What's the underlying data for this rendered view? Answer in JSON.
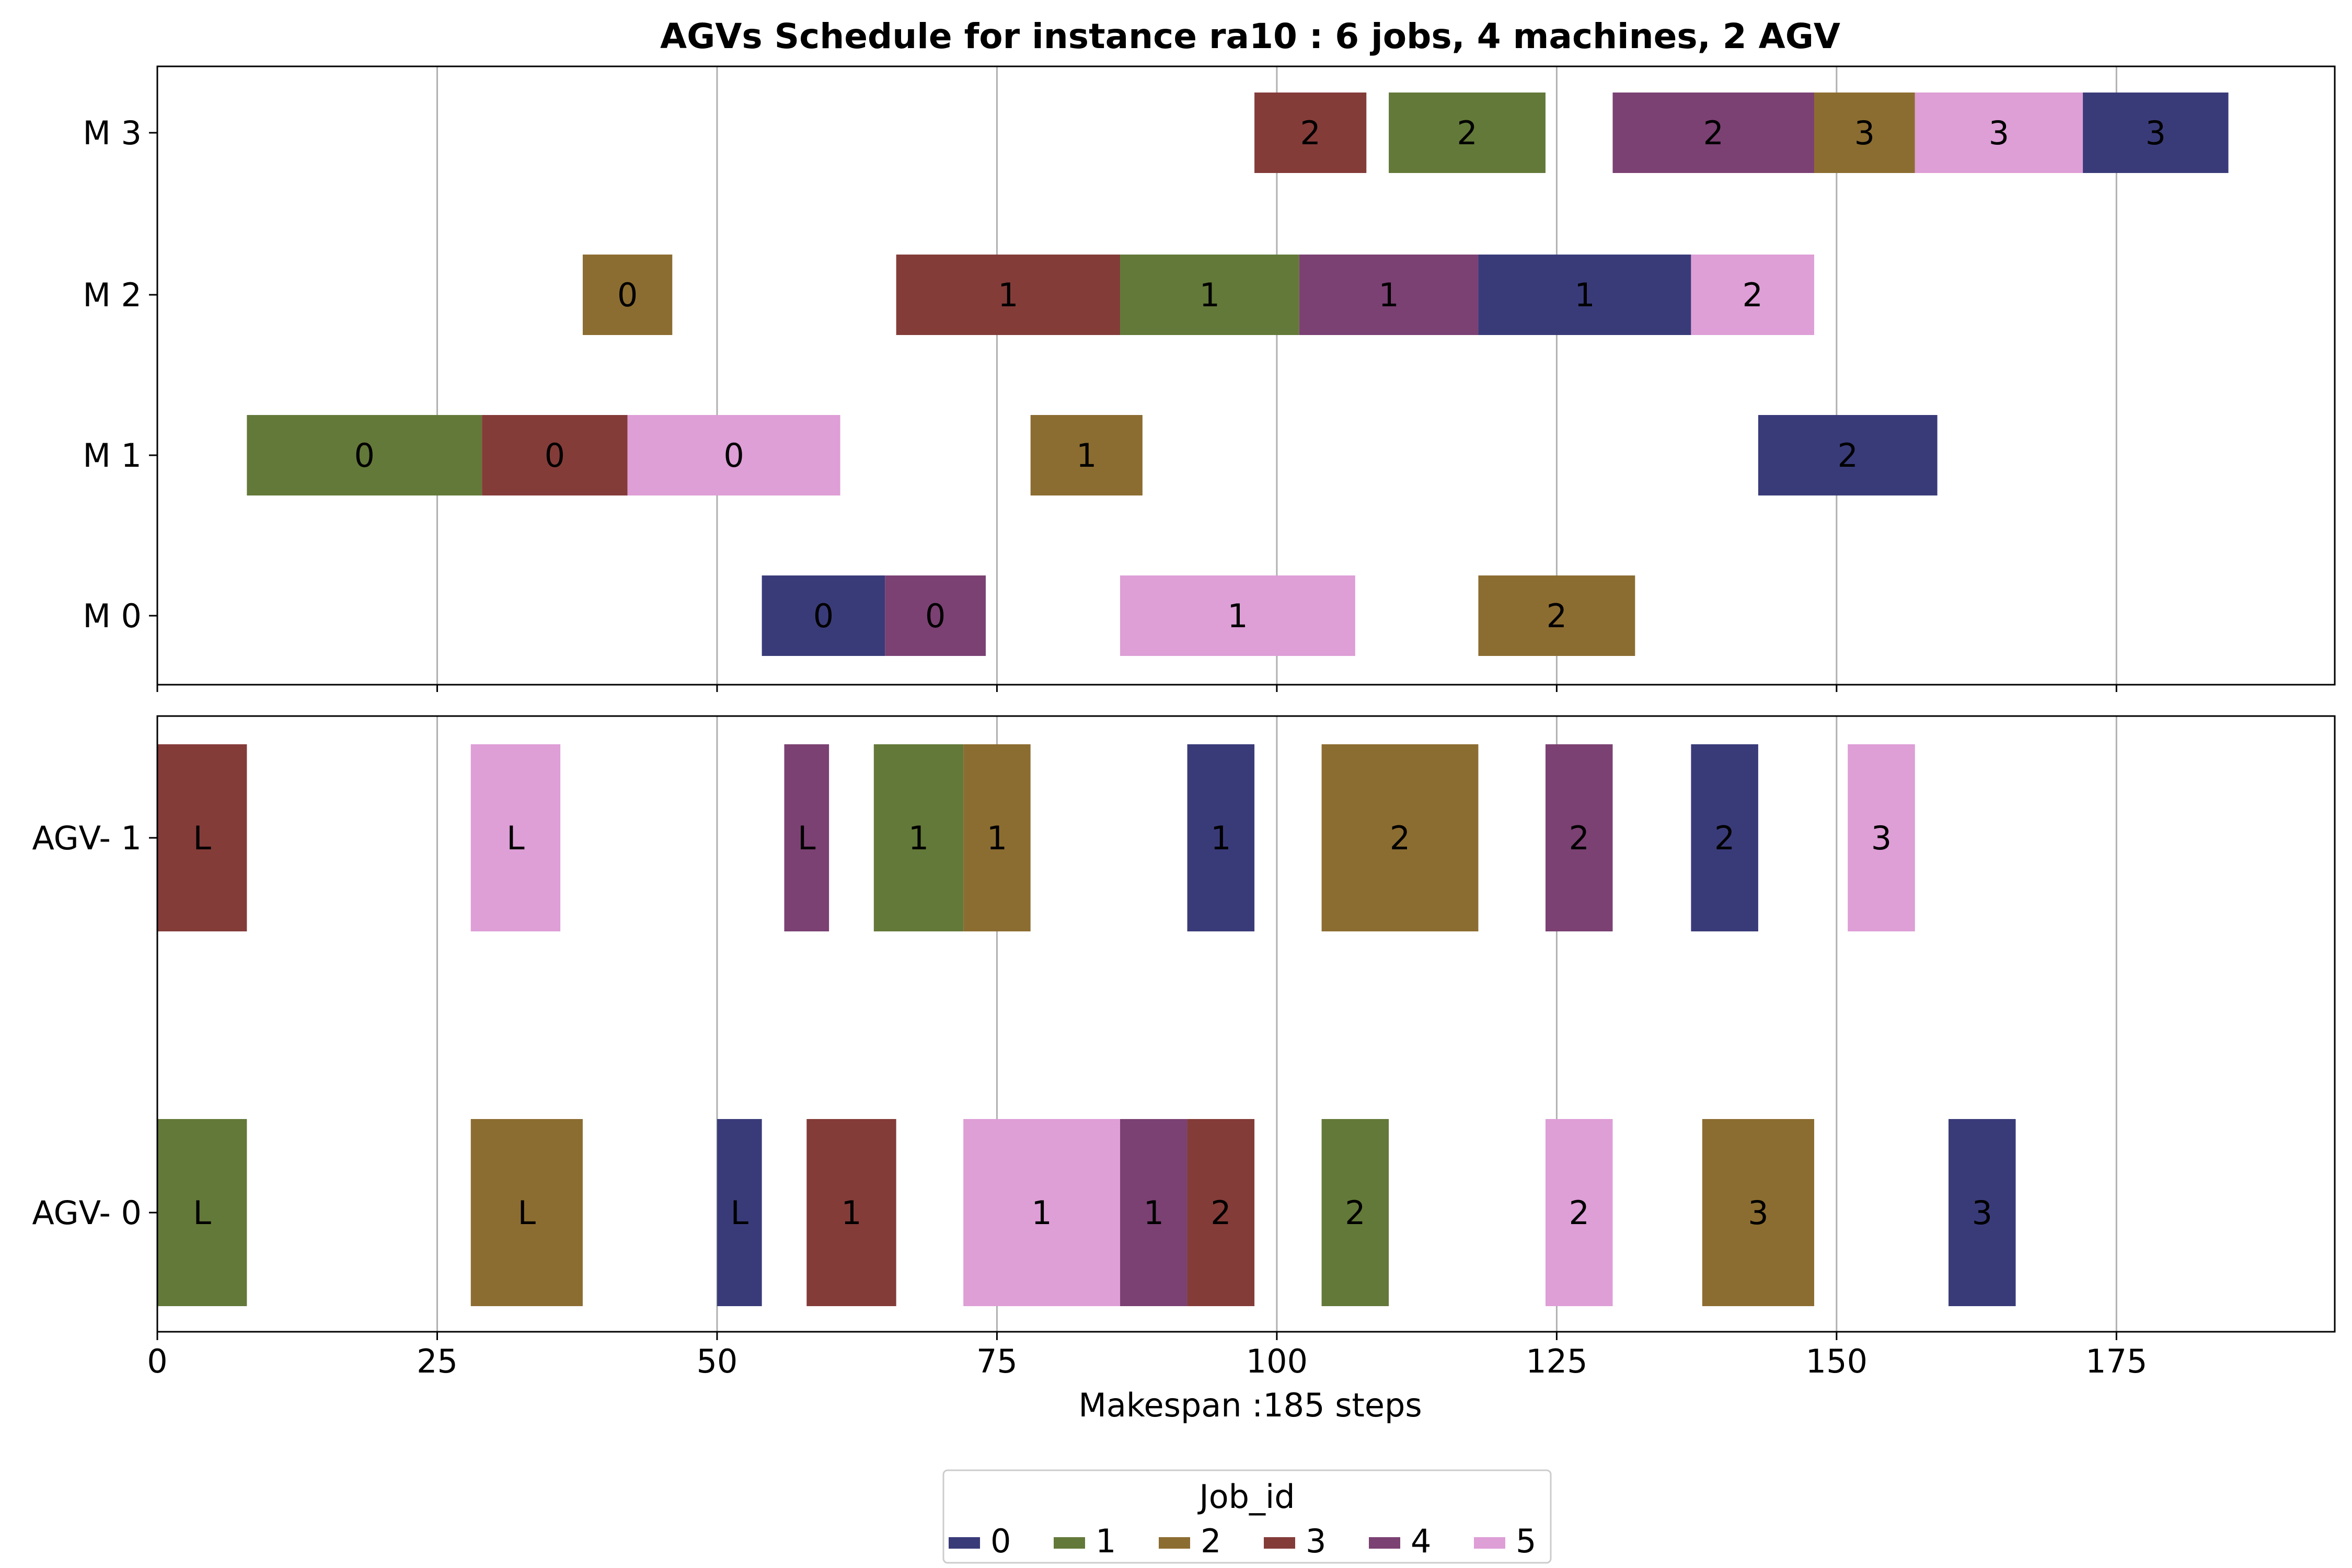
{
  "chart_data": {
    "type": "gantt",
    "title": "AGVs Schedule for instance ra10  : 6 jobs, 4 machines, 2 AGV",
    "xlabel": "Makespan :185 steps",
    "xlim": [
      0,
      194.5
    ],
    "x_ticks": [
      0,
      25,
      50,
      75,
      100,
      125,
      150,
      175
    ],
    "grid": "vertical",
    "legend": {
      "title": "Job_id",
      "placement": "bottom-center",
      "entries": [
        "0",
        "1",
        "2",
        "3",
        "4",
        "5"
      ]
    },
    "job_colors": {
      "0": "#393b79",
      "1": "#637939",
      "2": "#8c6d31",
      "3": "#843c39",
      "4": "#7b4173",
      "5": "#de9ed6"
    },
    "panels": [
      {
        "name": "machines",
        "rows": [
          "M 0",
          "M 1",
          "M 2",
          "M 3"
        ],
        "tasks": [
          {
            "row": "M 3",
            "job": 3,
            "start": 98,
            "end": 108,
            "label": "2"
          },
          {
            "row": "M 3",
            "job": 1,
            "start": 110,
            "end": 124,
            "label": "2"
          },
          {
            "row": "M 3",
            "job": 4,
            "start": 130,
            "end": 148,
            "label": "2"
          },
          {
            "row": "M 3",
            "job": 2,
            "start": 148,
            "end": 157,
            "label": "3"
          },
          {
            "row": "M 3",
            "job": 5,
            "start": 157,
            "end": 172,
            "label": "3"
          },
          {
            "row": "M 3",
            "job": 0,
            "start": 172,
            "end": 185,
            "label": "3"
          },
          {
            "row": "M 2",
            "job": 2,
            "start": 38,
            "end": 46,
            "label": "0"
          },
          {
            "row": "M 2",
            "job": 3,
            "start": 66,
            "end": 86,
            "label": "1"
          },
          {
            "row": "M 2",
            "job": 1,
            "start": 86,
            "end": 102,
            "label": "1"
          },
          {
            "row": "M 2",
            "job": 4,
            "start": 102,
            "end": 118,
            "label": "1"
          },
          {
            "row": "M 2",
            "job": 0,
            "start": 118,
            "end": 137,
            "label": "1"
          },
          {
            "row": "M 2",
            "job": 5,
            "start": 137,
            "end": 148,
            "label": "2"
          },
          {
            "row": "M 1",
            "job": 1,
            "start": 8,
            "end": 29,
            "label": "0"
          },
          {
            "row": "M 1",
            "job": 3,
            "start": 29,
            "end": 42,
            "label": "0"
          },
          {
            "row": "M 1",
            "job": 5,
            "start": 42,
            "end": 61,
            "label": "0"
          },
          {
            "row": "M 1",
            "job": 2,
            "start": 78,
            "end": 88,
            "label": "1"
          },
          {
            "row": "M 1",
            "job": 0,
            "start": 143,
            "end": 159,
            "label": "2"
          },
          {
            "row": "M 0",
            "job": 0,
            "start": 54,
            "end": 65,
            "label": "0"
          },
          {
            "row": "M 0",
            "job": 4,
            "start": 65,
            "end": 74,
            "label": "0"
          },
          {
            "row": "M 0",
            "job": 5,
            "start": 86,
            "end": 107,
            "label": "1"
          },
          {
            "row": "M 0",
            "job": 2,
            "start": 118,
            "end": 132,
            "label": "2"
          }
        ]
      },
      {
        "name": "agvs",
        "rows": [
          "AGV- 0",
          "AGV- 1"
        ],
        "tasks": [
          {
            "row": "AGV- 1",
            "job": 3,
            "start": 0,
            "end": 8,
            "label": "L"
          },
          {
            "row": "AGV- 1",
            "job": 5,
            "start": 28,
            "end": 36,
            "label": "L"
          },
          {
            "row": "AGV- 1",
            "job": 4,
            "start": 56,
            "end": 60,
            "label": "L"
          },
          {
            "row": "AGV- 1",
            "job": 1,
            "start": 64,
            "end": 72,
            "label": "1"
          },
          {
            "row": "AGV- 1",
            "job": 2,
            "start": 72,
            "end": 78,
            "label": "1"
          },
          {
            "row": "AGV- 1",
            "job": 0,
            "start": 92,
            "end": 98,
            "label": "1"
          },
          {
            "row": "AGV- 1",
            "job": 2,
            "start": 104,
            "end": 118,
            "label": "2"
          },
          {
            "row": "AGV- 1",
            "job": 4,
            "start": 124,
            "end": 130,
            "label": "2"
          },
          {
            "row": "AGV- 1",
            "job": 0,
            "start": 137,
            "end": 143,
            "label": "2"
          },
          {
            "row": "AGV- 1",
            "job": 5,
            "start": 151,
            "end": 157,
            "label": "3"
          },
          {
            "row": "AGV- 0",
            "job": 1,
            "start": 0,
            "end": 8,
            "label": "L"
          },
          {
            "row": "AGV- 0",
            "job": 2,
            "start": 28,
            "end": 38,
            "label": "L"
          },
          {
            "row": "AGV- 0",
            "job": 0,
            "start": 50,
            "end": 54,
            "label": "L"
          },
          {
            "row": "AGV- 0",
            "job": 3,
            "start": 58,
            "end": 66,
            "label": "1"
          },
          {
            "row": "AGV- 0",
            "job": 5,
            "start": 72,
            "end": 86,
            "label": "1"
          },
          {
            "row": "AGV- 0",
            "job": 4,
            "start": 86,
            "end": 92,
            "label": "1"
          },
          {
            "row": "AGV- 0",
            "job": 3,
            "start": 92,
            "end": 98,
            "label": "2"
          },
          {
            "row": "AGV- 0",
            "job": 1,
            "start": 104,
            "end": 110,
            "label": "2"
          },
          {
            "row": "AGV- 0",
            "job": 5,
            "start": 124,
            "end": 130,
            "label": "2"
          },
          {
            "row": "AGV- 0",
            "job": 2,
            "start": 138,
            "end": 148,
            "label": "3"
          },
          {
            "row": "AGV- 0",
            "job": 0,
            "start": 160,
            "end": 166,
            "label": "3"
          }
        ]
      }
    ]
  }
}
